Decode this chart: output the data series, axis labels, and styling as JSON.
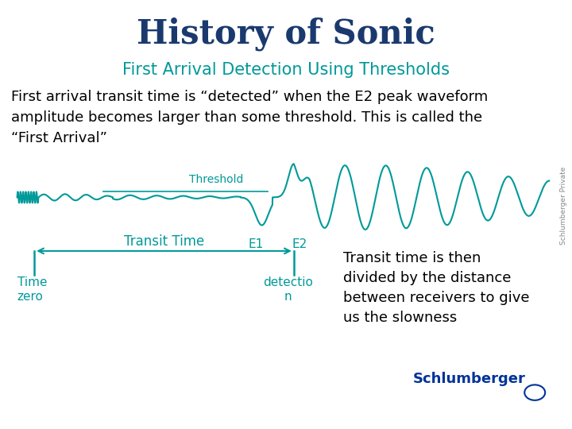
{
  "title": "History of Sonic",
  "subtitle": "First Arrival Detection Using Thresholds",
  "title_color": "#1a3a6e",
  "subtitle_color": "#009999",
  "teal_color": "#009999",
  "body_text": "First arrival transit time is “detected” when the E2 peak waveform\namplitude becomes larger than some threshold. This is called the\n“First Arrival”",
  "body_text_color": "#000000",
  "threshold_label": "Threshold",
  "e1_label": "E1",
  "e2_label": "E2",
  "transit_label": "Transit Time",
  "detection_label": "detectio\nn",
  "time_zero_label": "Time\nzero",
  "right_text": "Transit time is then\ndivided by the distance\nbetween receivers to give\nus the slowness",
  "watermark": "Schlumberger Private",
  "bg_color": "#ffffff",
  "title_fontsize": 30,
  "subtitle_fontsize": 15,
  "body_fontsize": 13,
  "annotation_fontsize": 11,
  "schlumberger_color": "#003399"
}
